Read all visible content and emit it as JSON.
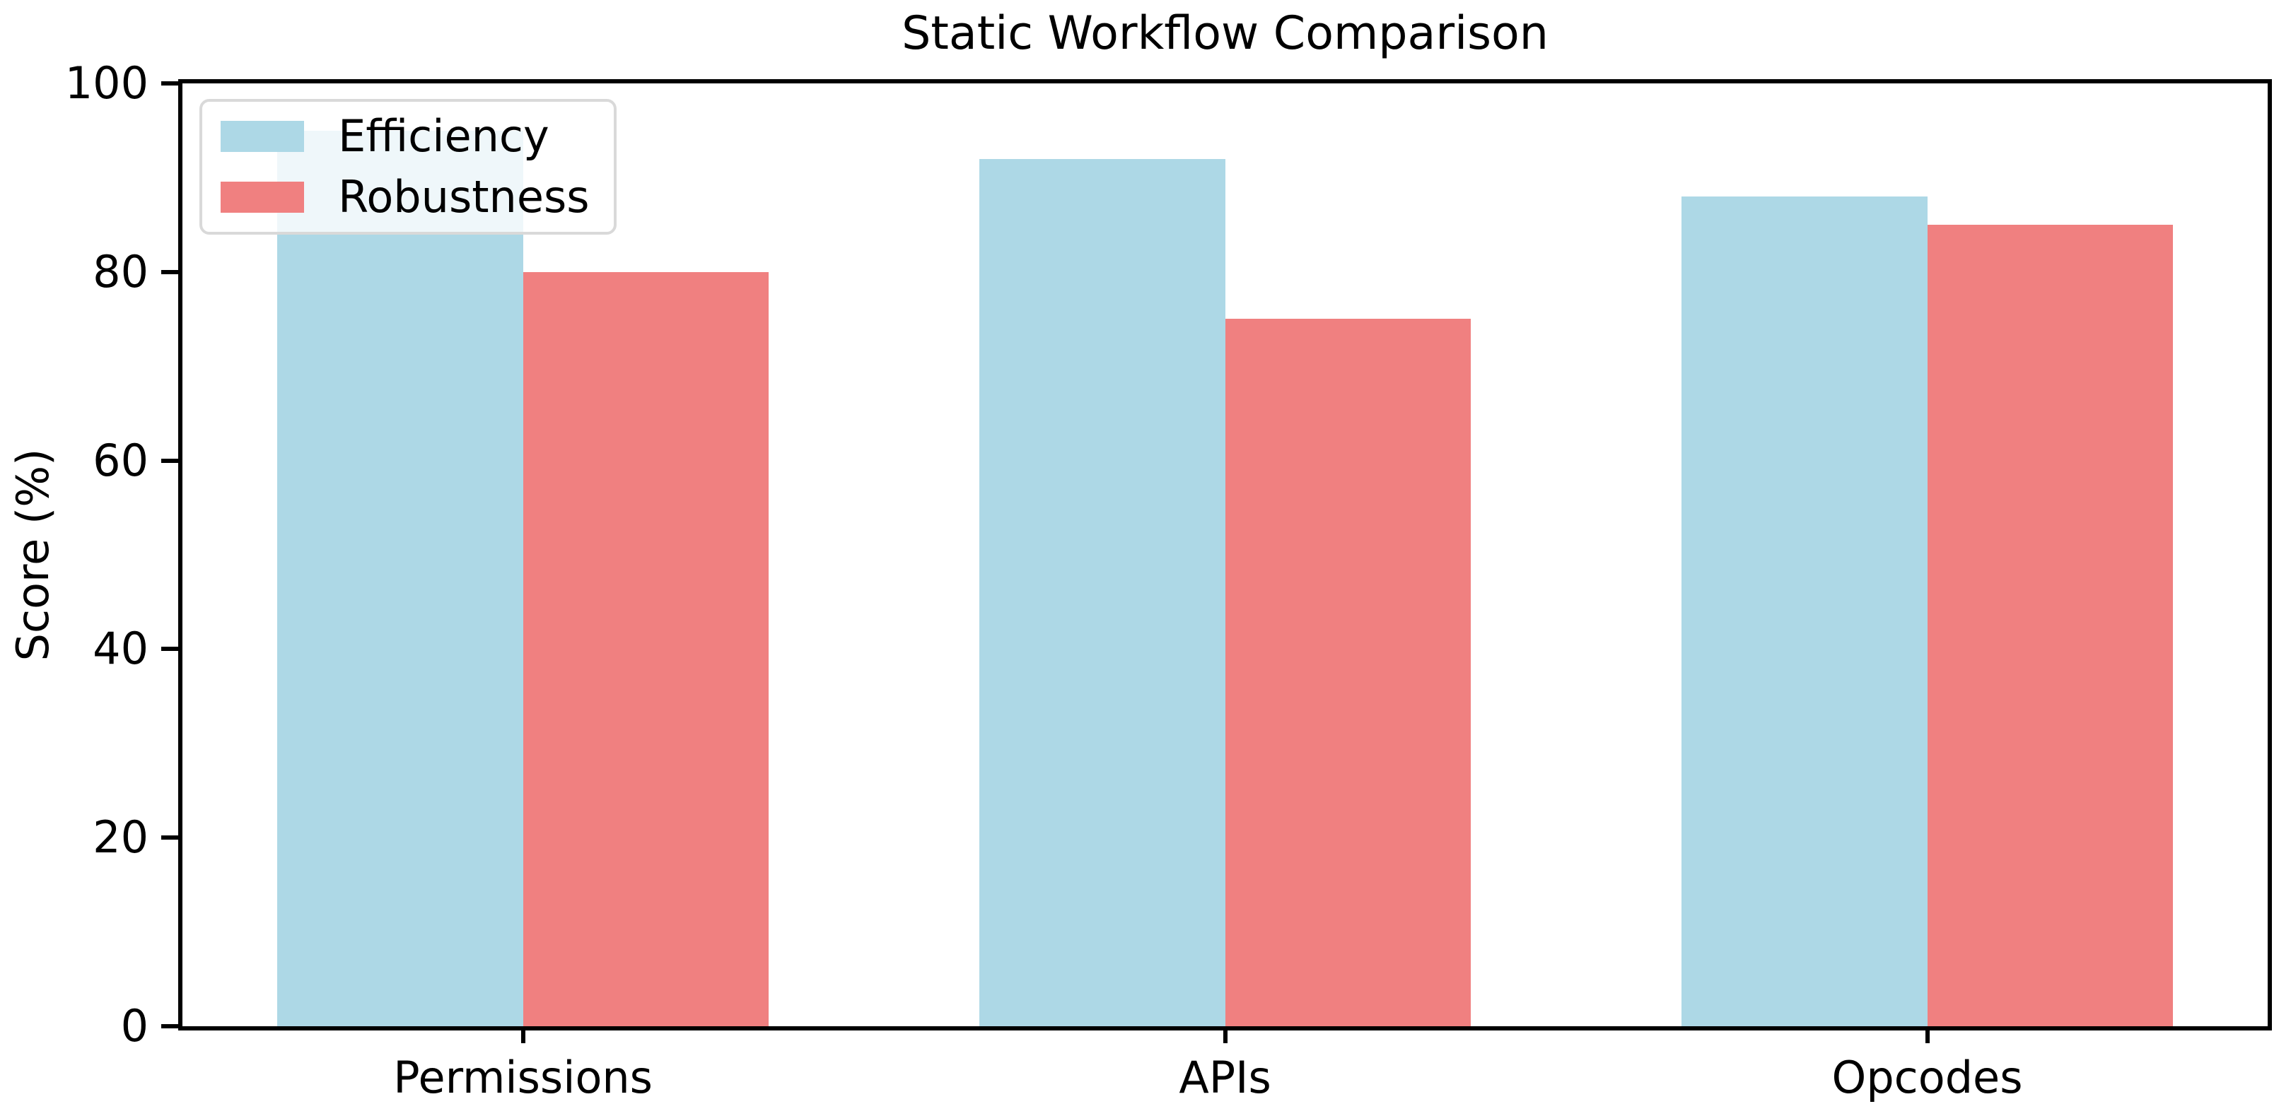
{
  "chart_data": {
    "type": "bar",
    "title": "Static Workflow Comparison",
    "ylabel": "Score (%)",
    "xlabel": "",
    "categories": [
      "Permissions",
      "APIs",
      "Opcodes"
    ],
    "series": [
      {
        "name": "Efficiency",
        "color": "#ADD8E6",
        "values": [
          95,
          92,
          88
        ]
      },
      {
        "name": "Robustness",
        "color": "#F08080",
        "values": [
          80,
          75,
          85
        ]
      }
    ],
    "ylim": [
      0,
      100
    ],
    "yticks": [
      0,
      20,
      40,
      60,
      80,
      100
    ],
    "x_range_units": [
      -0.485,
      2.485
    ],
    "bar_width_units": 0.35,
    "grid": false,
    "legend_position": "upper-left",
    "colors": {
      "axis": "#000000",
      "text": "#000000",
      "plot_background": "#ffffff",
      "legend_border": "#d9d9d9",
      "legend_background": "rgba(255,255,255,0.8)"
    }
  }
}
